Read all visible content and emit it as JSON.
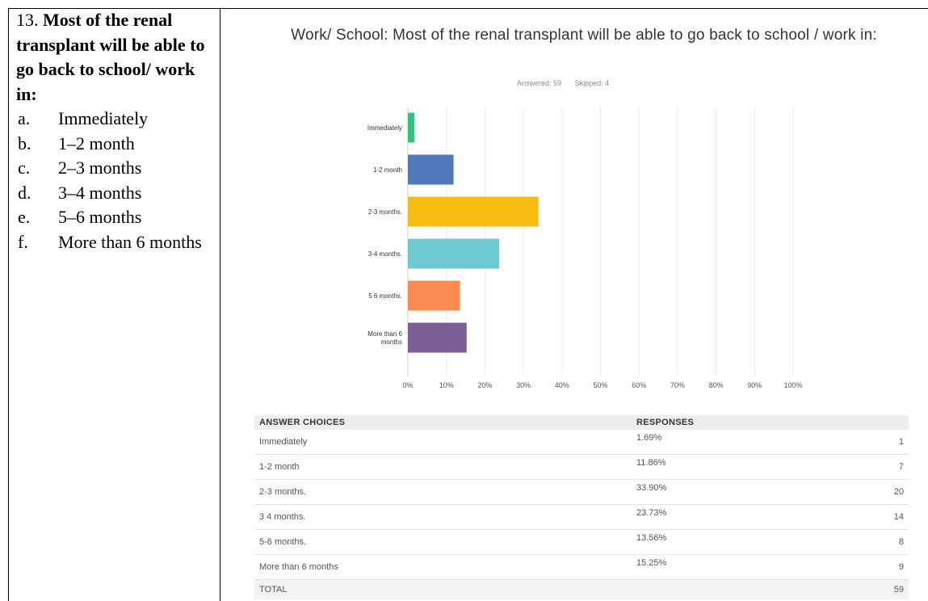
{
  "question": {
    "number": "13.",
    "text": "Most of the renal transplant will be able to go back to school/ work in:",
    "options": [
      {
        "letter": "a.",
        "label": "Immediately"
      },
      {
        "letter": "b.",
        "label": "1–2 month"
      },
      {
        "letter": "c.",
        "label": "2–3 months"
      },
      {
        "letter": "d.",
        "label": "3–4 months"
      },
      {
        "letter": "e.",
        "label": "5–6 months"
      },
      {
        "letter": "f.",
        "label": "More than 6 months"
      }
    ]
  },
  "chart_data": {
    "type": "bar",
    "orientation": "horizontal",
    "title": "Work/ School: Most of the renal transplant will be able to go back to school / work in:",
    "answered": "Answered: 59",
    "skipped": "Skipped: 4",
    "categories": [
      "Immediately",
      "1-2 month",
      "2-3 months.",
      "3-4 months.",
      "5 6 months.",
      "More than 6 months"
    ],
    "values": [
      1.69,
      11.86,
      33.9,
      23.73,
      13.56,
      15.25
    ],
    "colors": [
      "#2dc47d",
      "#4f79b8",
      "#f7bd10",
      "#6ccad0",
      "#fa8b52",
      "#7d5e96"
    ],
    "xlim": [
      0,
      100
    ],
    "x_ticks": [
      "0%",
      "10%",
      "20%",
      "30%",
      "40%",
      "50%",
      "60%",
      "70%",
      "80%",
      "90%",
      "100%"
    ],
    "grid": true,
    "xlabel": "",
    "ylabel": ""
  },
  "table": {
    "headers": [
      "ANSWER CHOICES",
      "RESPONSES"
    ],
    "rows": [
      {
        "choice": "Immediately",
        "percent": "1.69%",
        "count": "1"
      },
      {
        "choice": "1-2 month",
        "percent": "11.86%",
        "count": "7"
      },
      {
        "choice": "2-3 months.",
        "percent": "33.90%",
        "count": "20"
      },
      {
        "choice": "3 4 months.",
        "percent": "23.73%",
        "count": "14"
      },
      {
        "choice": "5-6 months.",
        "percent": "13.56%",
        "count": "8"
      },
      {
        "choice": "More than 6 months",
        "percent": "15.25%",
        "count": "9"
      }
    ],
    "total_label": "TOTAL",
    "total_count": "59"
  }
}
